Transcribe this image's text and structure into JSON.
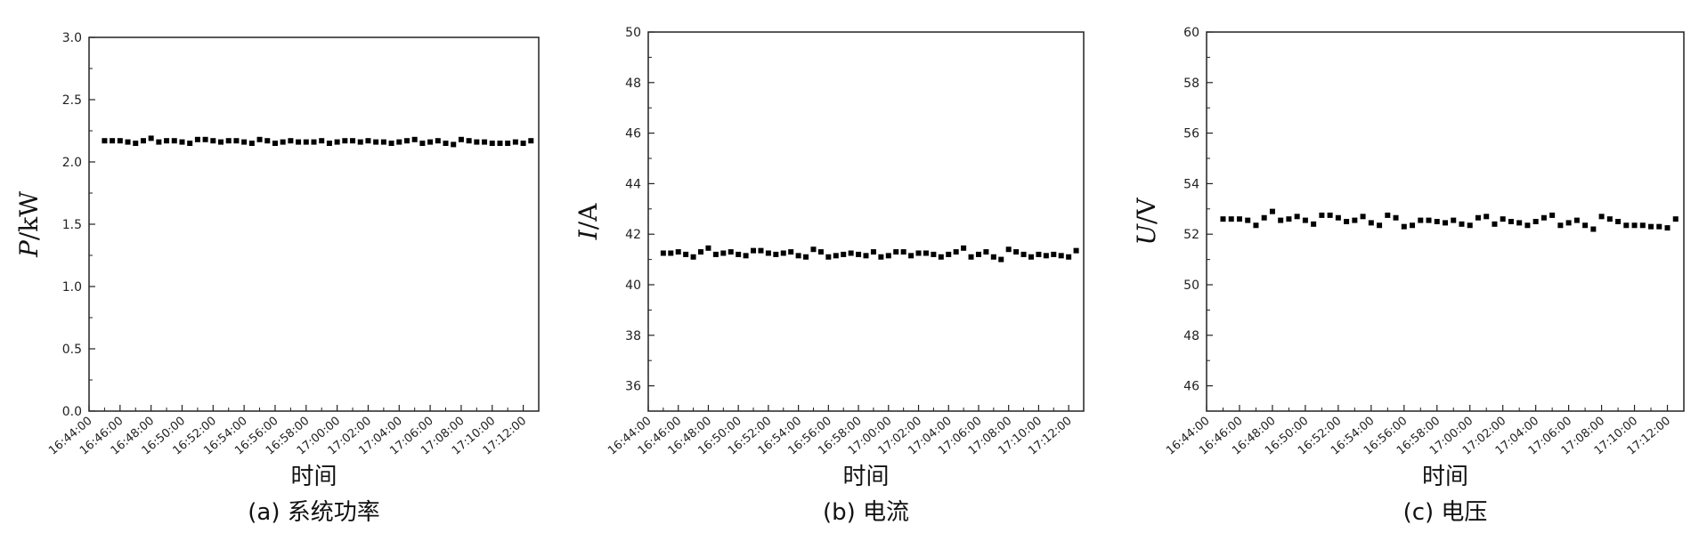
{
  "chart_data": [
    {
      "type": "scatter",
      "caption": "(a) 系统功率",
      "xlabel": "时间",
      "ylabel_var": "P",
      "ylabel_unit": "/kW",
      "ylim": [
        0.0,
        3.0
      ],
      "yticks": [
        "0.0",
        "0.5",
        "1.0",
        "1.5",
        "2.0",
        "2.5",
        "3.0"
      ],
      "xlim": [
        "16:44:00",
        "17:13:00"
      ],
      "xticks": [
        "16:44:00",
        "16:46:00",
        "16:48:00",
        "16:50:00",
        "16:52:00",
        "16:54:00",
        "16:56:00",
        "16:58:00",
        "17:00:00",
        "17:02:00",
        "17:04:00",
        "17:06:00",
        "17:08:00",
        "17:10:00",
        "17:12:00"
      ],
      "x_start": "16:45:00",
      "x_step_seconds": 30,
      "values": [
        2.17,
        2.17,
        2.17,
        2.16,
        2.15,
        2.17,
        2.19,
        2.16,
        2.17,
        2.17,
        2.16,
        2.15,
        2.18,
        2.18,
        2.17,
        2.16,
        2.17,
        2.17,
        2.16,
        2.15,
        2.18,
        2.17,
        2.15,
        2.16,
        2.17,
        2.16,
        2.16,
        2.16,
        2.17,
        2.15,
        2.16,
        2.17,
        2.17,
        2.16,
        2.17,
        2.16,
        2.16,
        2.15,
        2.16,
        2.17,
        2.18,
        2.15,
        2.16,
        2.17,
        2.15,
        2.14,
        2.18,
        2.17,
        2.16,
        2.16,
        2.15,
        2.15,
        2.15,
        2.16,
        2.15,
        2.17
      ]
    },
    {
      "type": "scatter",
      "caption": "(b) 电流",
      "xlabel": "时间",
      "ylabel_var": "I",
      "ylabel_unit": "/A",
      "ylim": [
        35.0,
        50.0
      ],
      "yticks": [
        "36",
        "38",
        "40",
        "42",
        "44",
        "46",
        "48",
        "50"
      ],
      "xlim": [
        "16:44:00",
        "17:13:00"
      ],
      "xticks": [
        "16:44:00",
        "16:46:00",
        "16:48:00",
        "16:50:00",
        "16:52:00",
        "16:54:00",
        "16:56:00",
        "16:58:00",
        "17:00:00",
        "17:02:00",
        "17:04:00",
        "17:06:00",
        "17:08:00",
        "17:10:00",
        "17:12:00"
      ],
      "x_start": "16:45:00",
      "x_step_seconds": 30,
      "values": [
        41.25,
        41.25,
        41.3,
        41.2,
        41.1,
        41.3,
        41.45,
        41.2,
        41.25,
        41.3,
        41.2,
        41.15,
        41.35,
        41.35,
        41.25,
        41.2,
        41.25,
        41.3,
        41.15,
        41.1,
        41.4,
        41.3,
        41.1,
        41.15,
        41.2,
        41.25,
        41.2,
        41.15,
        41.3,
        41.1,
        41.15,
        41.3,
        41.3,
        41.15,
        41.25,
        41.25,
        41.2,
        41.1,
        41.2,
        41.3,
        41.45,
        41.1,
        41.2,
        41.3,
        41.1,
        41.0,
        41.4,
        41.3,
        41.2,
        41.1,
        41.2,
        41.15,
        41.2,
        41.15,
        41.1,
        41.35
      ]
    },
    {
      "type": "scatter",
      "caption": "(c) 电压",
      "xlabel": "时间",
      "ylabel_var": "U",
      "ylabel_unit": "/V",
      "ylim": [
        45.0,
        60.0
      ],
      "yticks": [
        "46",
        "48",
        "50",
        "52",
        "54",
        "56",
        "58",
        "60"
      ],
      "xlim": [
        "16:44:00",
        "17:13:00"
      ],
      "xticks": [
        "16:44:00",
        "16:46:00",
        "16:48:00",
        "16:50:00",
        "16:52:00",
        "16:54:00",
        "16:56:00",
        "16:58:00",
        "17:00:00",
        "17:02:00",
        "17:04:00",
        "17:06:00",
        "17:08:00",
        "17:10:00",
        "17:12:00"
      ],
      "x_start": "16:45:00",
      "x_step_seconds": 30,
      "values": [
        52.6,
        52.6,
        52.6,
        52.55,
        52.35,
        52.65,
        52.9,
        52.55,
        52.6,
        52.7,
        52.55,
        52.4,
        52.75,
        52.75,
        52.65,
        52.5,
        52.55,
        52.7,
        52.45,
        52.35,
        52.75,
        52.65,
        52.3,
        52.35,
        52.55,
        52.55,
        52.5,
        52.45,
        52.55,
        52.4,
        52.35,
        52.65,
        52.7,
        52.4,
        52.6,
        52.5,
        52.45,
        52.35,
        52.5,
        52.65,
        52.75,
        52.35,
        52.45,
        52.55,
        52.35,
        52.2,
        52.7,
        52.6,
        52.5,
        52.35,
        52.35,
        52.35,
        52.3,
        52.3,
        52.25,
        52.6
      ]
    }
  ]
}
